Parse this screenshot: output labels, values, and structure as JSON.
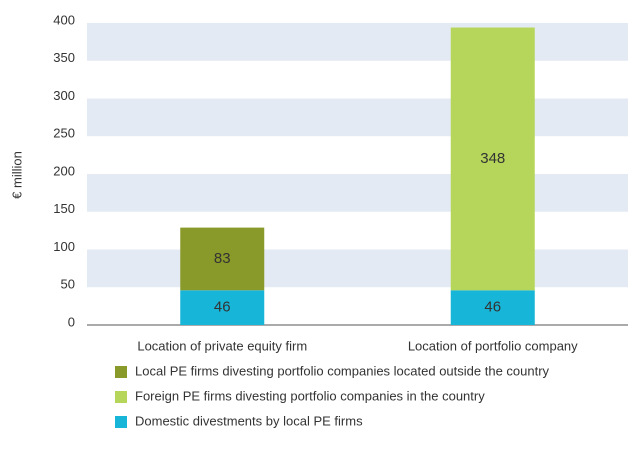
{
  "chart_data": {
    "type": "bar",
    "stacked": true,
    "y_label": "€ million",
    "categories": [
      "Location of private equity firm",
      "Location of portfolio company"
    ],
    "series": [
      {
        "name": "Local PE firms divesting portfolio companies located outside the country",
        "color": "#8a9a2a",
        "values": [
          83,
          null
        ]
      },
      {
        "name": "Foreign PE firms divesting portfolio companies in the country",
        "color": "#b5d65a",
        "values": [
          null,
          348
        ]
      },
      {
        "name": "Domestic divestments by local PE firms",
        "color": "#17b5d8",
        "values": [
          46,
          46
        ]
      }
    ],
    "ylim": [
      0,
      400
    ],
    "yticks": [
      0,
      50,
      100,
      150,
      200,
      250,
      300,
      350,
      400
    ],
    "grid": true,
    "band_color": "#e4eaf3",
    "legend": "bottom"
  }
}
